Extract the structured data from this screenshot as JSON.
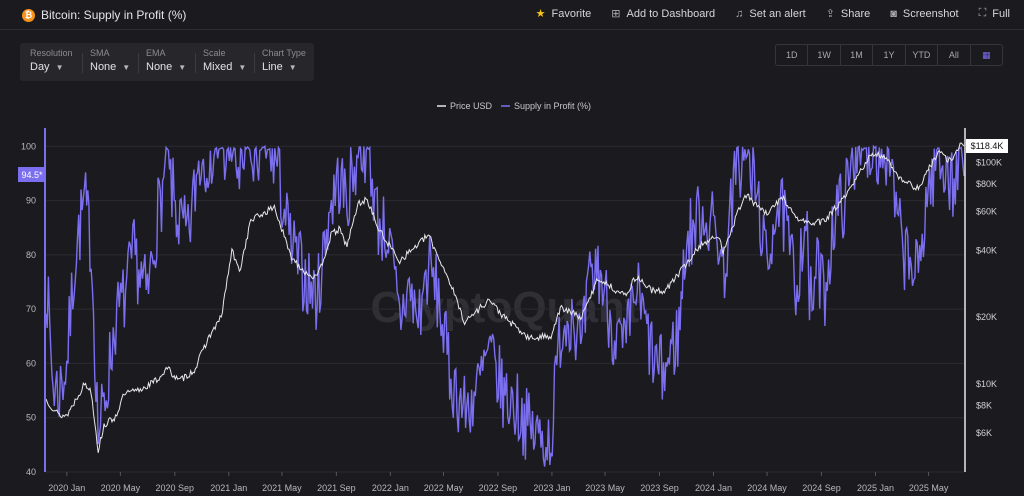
{
  "header": {
    "title": "Bitcoin: Supply in Profit (%)",
    "actions": [
      {
        "label": "Favorite",
        "icon": "star-icon"
      },
      {
        "label": "Add to Dashboard",
        "icon": "dashboard-add-icon"
      },
      {
        "label": "Set an alert",
        "icon": "bell-icon"
      },
      {
        "label": "Share",
        "icon": "share-icon"
      },
      {
        "label": "Screenshot",
        "icon": "camera-icon"
      },
      {
        "label": "Full",
        "icon": "fullscreen-icon"
      }
    ]
  },
  "controls": [
    {
      "label": "Resolution",
      "value": "Day"
    },
    {
      "label": "SMA",
      "value": "None"
    },
    {
      "label": "EMA",
      "value": "None"
    },
    {
      "label": "Scale",
      "value": "Mixed"
    },
    {
      "label": "Chart Type",
      "value": "Line"
    }
  ],
  "ranges": [
    "1D",
    "1W",
    "1M",
    "1Y",
    "YTD",
    "All"
  ],
  "watermark": "CryptoQuant",
  "chart_data": {
    "type": "line",
    "legend_position": "top-center",
    "legend": [
      "Price USD",
      "Supply in Profit (%)"
    ],
    "x_ticks": [
      "2020 Jan",
      "2020 May",
      "2020 Sep",
      "2021 Jan",
      "2021 May",
      "2021 Sep",
      "2022 Jan",
      "2022 May",
      "2022 Sep",
      "2023 Jan",
      "2023 May",
      "2023 Sep",
      "2024 Jan",
      "2024 May",
      "2024 Sep",
      "2025 Jan",
      "2025 May"
    ],
    "x_range": [
      "2019-11-15",
      "2025-07-20"
    ],
    "y_left": {
      "label": "",
      "min": 40,
      "max": 103,
      "ticks": [
        40,
        50,
        60,
        70,
        80,
        90,
        100
      ]
    },
    "y_right": {
      "label": "",
      "scale": "log",
      "min": 4000,
      "max": 140000,
      "ticks": [
        6000,
        8000,
        10000,
        20000,
        40000,
        60000,
        80000,
        100000
      ],
      "tick_labels": [
        "$6K",
        "$8K",
        "$10K",
        "$20K",
        "$40K",
        "$60K",
        "$80K",
        "$100K"
      ]
    },
    "current_left_label": "94.5*",
    "current_right_label": "$118.4K",
    "colors": {
      "price": "#e8e8ec",
      "supply": "#7b6ff0"
    },
    "series": [
      {
        "name": "Supply in Profit (%)",
        "axis": "left",
        "points": [
          [
            "2019-11-15",
            76
          ],
          [
            "2019-12-01",
            56
          ],
          [
            "2019-12-15",
            55
          ],
          [
            "2020-01-01",
            60
          ],
          [
            "2020-01-20",
            80
          ],
          [
            "2020-02-10",
            90
          ],
          [
            "2020-02-25",
            82
          ],
          [
            "2020-03-12",
            47
          ],
          [
            "2020-03-25",
            52
          ],
          [
            "2020-04-20",
            68
          ],
          [
            "2020-05-10",
            72
          ],
          [
            "2020-06-01",
            80
          ],
          [
            "2020-07-01",
            72
          ],
          [
            "2020-07-25",
            88
          ],
          [
            "2020-08-15",
            96
          ],
          [
            "2020-09-10",
            86
          ],
          [
            "2020-10-01",
            83
          ],
          [
            "2020-10-25",
            97
          ],
          [
            "2020-11-15",
            99
          ],
          [
            "2020-12-15",
            100
          ],
          [
            "2021-01-10",
            99
          ],
          [
            "2021-01-25",
            95
          ],
          [
            "2021-02-20",
            99
          ],
          [
            "2021-03-15",
            100
          ],
          [
            "2021-04-15",
            98
          ],
          [
            "2021-05-20",
            82
          ],
          [
            "2021-06-20",
            76
          ],
          [
            "2021-07-20",
            72
          ],
          [
            "2021-08-15",
            88
          ],
          [
            "2021-09-07",
            94
          ],
          [
            "2021-09-25",
            90
          ],
          [
            "2021-10-20",
            99
          ],
          [
            "2021-11-10",
            100
          ],
          [
            "2021-12-05",
            86
          ],
          [
            "2021-12-25",
            84
          ],
          [
            "2022-01-22",
            68
          ],
          [
            "2022-02-10",
            74
          ],
          [
            "2022-03-05",
            68
          ],
          [
            "2022-03-28",
            78
          ],
          [
            "2022-04-20",
            72
          ],
          [
            "2022-05-15",
            58
          ],
          [
            "2022-06-20",
            51
          ],
          [
            "2022-07-20",
            56
          ],
          [
            "2022-08-12",
            62
          ],
          [
            "2022-09-15",
            54
          ],
          [
            "2022-10-15",
            52
          ],
          [
            "2022-11-10",
            48
          ],
          [
            "2022-12-10",
            46
          ],
          [
            "2022-12-30",
            46
          ],
          [
            "2023-01-20",
            66
          ],
          [
            "2023-02-15",
            70
          ],
          [
            "2023-03-10",
            62
          ],
          [
            "2023-03-25",
            74
          ],
          [
            "2023-04-15",
            78
          ],
          [
            "2023-05-20",
            66
          ],
          [
            "2023-06-15",
            62
          ],
          [
            "2023-07-10",
            74
          ],
          [
            "2023-08-20",
            60
          ],
          [
            "2023-09-10",
            58
          ],
          [
            "2023-10-15",
            66
          ],
          [
            "2023-10-30",
            82
          ],
          [
            "2023-12-05",
            88
          ],
          [
            "2024-01-12",
            84
          ],
          [
            "2024-01-23",
            76
          ],
          [
            "2024-02-15",
            92
          ],
          [
            "2024-03-12",
            100
          ],
          [
            "2024-04-15",
            88
          ],
          [
            "2024-05-01",
            76
          ],
          [
            "2024-05-20",
            90
          ],
          [
            "2024-06-10",
            86
          ],
          [
            "2024-07-05",
            74
          ],
          [
            "2024-07-28",
            88
          ],
          [
            "2024-08-05",
            70
          ],
          [
            "2024-08-25",
            78
          ],
          [
            "2024-09-06",
            72
          ],
          [
            "2024-09-28",
            86
          ],
          [
            "2024-10-30",
            92
          ],
          [
            "2024-11-20",
            100
          ],
          [
            "2024-12-17",
            100
          ],
          [
            "2025-01-20",
            99
          ],
          [
            "2025-02-05",
            94
          ],
          [
            "2025-02-28",
            82
          ],
          [
            "2025-03-15",
            79
          ],
          [
            "2025-04-08",
            76
          ],
          [
            "2025-04-25",
            90
          ],
          [
            "2025-05-22",
            99
          ],
          [
            "2025-06-10",
            96
          ],
          [
            "2025-06-25",
            92
          ],
          [
            "2025-07-14",
            100
          ],
          [
            "2025-07-20",
            94.5
          ]
        ]
      },
      {
        "name": "Price USD",
        "axis": "right",
        "points": [
          [
            "2019-11-15",
            8500
          ],
          [
            "2019-12-15",
            7200
          ],
          [
            "2020-01-01",
            7200
          ],
          [
            "2020-02-10",
            10000
          ],
          [
            "2020-02-25",
            9300
          ],
          [
            "2020-03-12",
            5000
          ],
          [
            "2020-03-25",
            6500
          ],
          [
            "2020-04-20",
            7100
          ],
          [
            "2020-05-10",
            9000
          ],
          [
            "2020-06-15",
            9400
          ],
          [
            "2020-07-25",
            10500
          ],
          [
            "2020-08-15",
            11800
          ],
          [
            "2020-09-10",
            10300
          ],
          [
            "2020-10-15",
            11500
          ],
          [
            "2020-11-15",
            16000
          ],
          [
            "2020-12-15",
            20000
          ],
          [
            "2021-01-08",
            40000
          ],
          [
            "2021-01-25",
            32000
          ],
          [
            "2021-02-20",
            55000
          ],
          [
            "2021-03-15",
            58000
          ],
          [
            "2021-04-14",
            63000
          ],
          [
            "2021-05-20",
            38000
          ],
          [
            "2021-06-22",
            32000
          ],
          [
            "2021-07-20",
            30000
          ],
          [
            "2021-08-20",
            47000
          ],
          [
            "2021-09-07",
            50000
          ],
          [
            "2021-09-25",
            42000
          ],
          [
            "2021-10-20",
            65000
          ],
          [
            "2021-11-10",
            68000
          ],
          [
            "2021-12-05",
            50000
          ],
          [
            "2022-01-22",
            36000
          ],
          [
            "2022-03-28",
            47000
          ],
          [
            "2022-05-15",
            29000
          ],
          [
            "2022-06-18",
            19000
          ],
          [
            "2022-08-12",
            24000
          ],
          [
            "2022-09-15",
            20000
          ],
          [
            "2022-11-10",
            16000
          ],
          [
            "2022-12-30",
            16500
          ],
          [
            "2023-01-20",
            22000
          ],
          [
            "2023-03-10",
            20000
          ],
          [
            "2023-04-15",
            30000
          ],
          [
            "2023-06-15",
            25000
          ],
          [
            "2023-07-10",
            30500
          ],
          [
            "2023-08-20",
            26000
          ],
          [
            "2023-09-15",
            26500
          ],
          [
            "2023-10-30",
            34500
          ],
          [
            "2023-12-05",
            43000
          ],
          [
            "2024-01-12",
            46000
          ],
          [
            "2024-01-23",
            40000
          ],
          [
            "2024-03-12",
            72000
          ],
          [
            "2024-05-01",
            58000
          ],
          [
            "2024-06-05",
            70000
          ],
          [
            "2024-07-05",
            56000
          ],
          [
            "2024-08-05",
            53000
          ],
          [
            "2024-09-06",
            54000
          ],
          [
            "2024-10-30",
            72000
          ],
          [
            "2024-12-17",
            106000
          ],
          [
            "2025-01-20",
            108000
          ],
          [
            "2025-02-28",
            84000
          ],
          [
            "2025-04-08",
            76000
          ],
          [
            "2025-05-22",
            111000
          ],
          [
            "2025-06-22",
            101000
          ],
          [
            "2025-07-14",
            122000
          ],
          [
            "2025-07-20",
            118400
          ]
        ]
      }
    ]
  }
}
